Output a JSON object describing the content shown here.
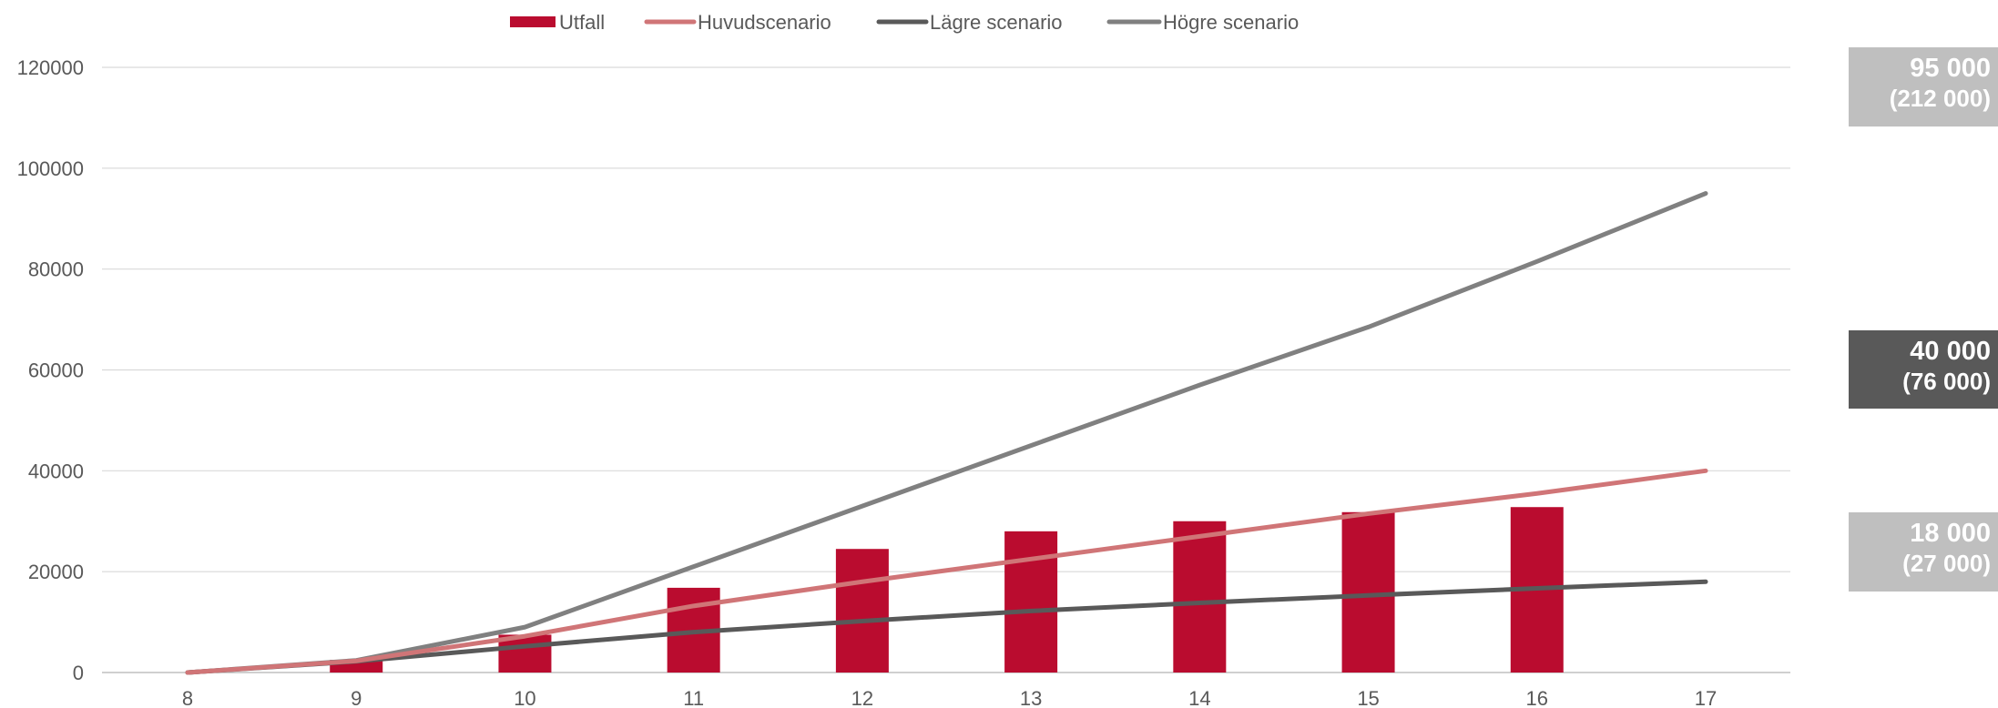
{
  "chart_data": {
    "type": "bar+line",
    "title": "",
    "xlabel": "",
    "ylabel": "",
    "x": [
      8,
      9,
      10,
      11,
      12,
      13,
      14,
      15,
      16,
      17
    ],
    "ylim": [
      0,
      120000
    ],
    "yticks": [
      0,
      20000,
      40000,
      60000,
      80000,
      100000,
      120000
    ],
    "grid": true,
    "legend_position": "top",
    "series": [
      {
        "name": "Utfall",
        "kind": "bar",
        "color": "#BA0C2F",
        "values": [
          null,
          2500,
          7500,
          16800,
          24500,
          28000,
          30000,
          31800,
          32800,
          null
        ]
      },
      {
        "name": "Huvudscenario",
        "kind": "line",
        "color": "#D07577",
        "values": [
          0,
          2300,
          7200,
          13200,
          18000,
          22500,
          27000,
          31500,
          35500,
          40000
        ]
      },
      {
        "name": "Lägre scenario",
        "kind": "line",
        "color": "#595959",
        "values": [
          0,
          2200,
          5200,
          8000,
          10200,
          12200,
          13800,
          15300,
          16700,
          18000
        ]
      },
      {
        "name": "Högre scenario",
        "kind": "line",
        "color": "#808080",
        "values": [
          0,
          2400,
          9000,
          21000,
          33000,
          45000,
          57000,
          68500,
          81500,
          95000
        ]
      }
    ]
  },
  "side_labels": {
    "high": {
      "value": "95 000",
      "sub": "(212 000)"
    },
    "main": {
      "value": "40 000",
      "sub": "(76 000)"
    },
    "low": {
      "value": "18 000",
      "sub": "(27 000)"
    }
  }
}
